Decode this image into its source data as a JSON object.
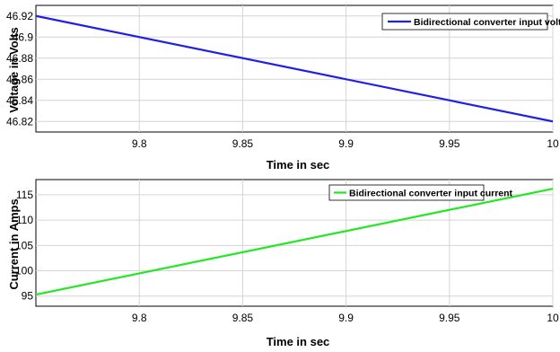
{
  "chart_data": [
    {
      "type": "line",
      "xlabel": "Time in sec",
      "ylabel": "Voltage in Volts",
      "xlim": [
        9.75,
        10
      ],
      "ylim": [
        46.81,
        46.93
      ],
      "xticks": [
        "9.8",
        "9.85",
        "9.9",
        "9.95",
        "10"
      ],
      "yticks": [
        "46.82",
        "46.84",
        "46.86",
        "46.88",
        "46.9",
        "46.92"
      ],
      "grid": true,
      "legend_position": "top-right",
      "series": [
        {
          "name": "Bidirectional converter input voltage",
          "color": "#1f1fe8",
          "x": [
            9.75,
            10
          ],
          "y": [
            46.92,
            46.82
          ]
        }
      ]
    },
    {
      "type": "line",
      "xlabel": "Time in sec",
      "ylabel": "Current in Amps",
      "xlim": [
        9.75,
        10
      ],
      "ylim": [
        93,
        118
      ],
      "xticks": [
        "9.8",
        "9.85",
        "9.9",
        "9.95",
        "10"
      ],
      "yticks": [
        "95",
        "100",
        "105",
        "110",
        "115"
      ],
      "grid": true,
      "legend_position": "top-right",
      "series": [
        {
          "name": "Bidirectional converter input current",
          "color": "#22e822",
          "x": [
            9.75,
            10
          ],
          "y": [
            95.3,
            116.2
          ]
        }
      ]
    }
  ]
}
